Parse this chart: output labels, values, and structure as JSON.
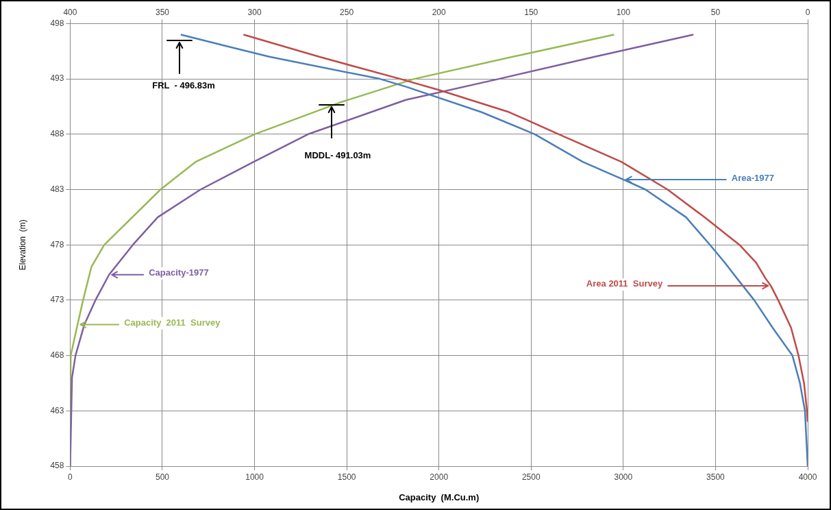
{
  "chart_data": {
    "type": "line",
    "xlabel": "Capacity  (M.Cu.m)",
    "ylabel": "Elevation  (m)",
    "xlim": [
      0,
      4000
    ],
    "xticks": [
      0,
      500,
      1000,
      1500,
      2000,
      2500,
      3000,
      3500,
      4000
    ],
    "x2lim": [
      400,
      0
    ],
    "x2ticks": [
      400,
      350,
      300,
      250,
      200,
      150,
      100,
      50,
      0
    ],
    "ylim": [
      458,
      498
    ],
    "yticks": [
      458,
      463,
      468,
      473,
      478,
      483,
      488,
      493,
      498
    ],
    "grid": true,
    "legend": "left",
    "marker": "none",
    "line_style": "solid",
    "series": [
      {
        "name": "Area-1977",
        "color": "#4a7ebb",
        "axis": "x2",
        "x": [
          0,
          1.5,
          4.2,
          8.3,
          19,
          29,
          38.5,
          45,
          53,
          66,
          88,
          100,
          122,
          148,
          177,
          218,
          232,
          292,
          316,
          340
        ],
        "values": [
          458,
          463,
          465.5,
          468,
          470.5,
          473,
          475,
          476.4,
          478,
          480.5,
          483,
          483.9,
          485.5,
          488,
          490,
          492.3,
          493,
          495,
          496,
          497
        ]
      },
      {
        "name": "Area 2011  Survey",
        "color": "#be4b48",
        "axis": "x2",
        "x": [
          0,
          0.4,
          2,
          5,
          9,
          16,
          20,
          23,
          28,
          37,
          56,
          76,
          101,
          135,
          162,
          200,
          221,
          265,
          306
        ],
        "values": [
          462,
          463,
          465.5,
          468,
          470.5,
          473,
          474.3,
          475,
          476.4,
          478,
          480.5,
          483,
          485.5,
          488,
          490,
          492,
          493,
          495,
          497
        ]
      },
      {
        "name": "Capacity-1977",
        "color": "#7d5fa0",
        "x": [
          0,
          10,
          29,
          77,
          137,
          211,
          340,
          475,
          707,
          995,
          1290,
          1820,
          2325,
          2845,
          3380
        ],
        "values": [
          458,
          466,
          468,
          470.8,
          473,
          475.3,
          478,
          480.5,
          483,
          485.5,
          488,
          491.1,
          493,
          495,
          497
        ]
      },
      {
        "name": "Capacity  2011  Survey",
        "color": "#98b954",
        "x": [
          0,
          1,
          3,
          40,
          70,
          115,
          185,
          490,
          680,
          1000,
          1460,
          1866,
          2400,
          2950
        ],
        "values": [
          458,
          463,
          468,
          470.8,
          473,
          476,
          478,
          483,
          485.5,
          488,
          490.85,
          493,
          495,
          497
        ]
      }
    ],
    "annotations": [
      "FRL  - 496.83m",
      "MDDL- 491.03m"
    ]
  }
}
